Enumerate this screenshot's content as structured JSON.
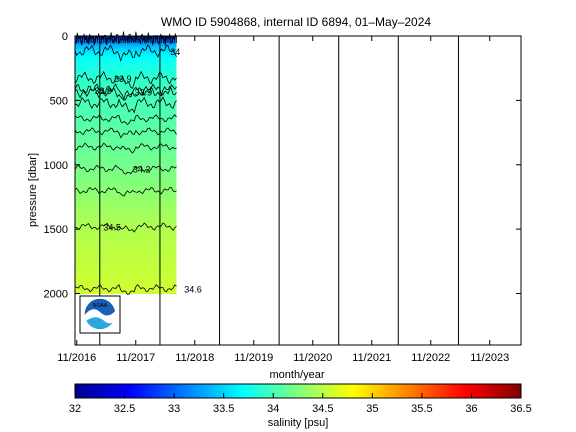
{
  "chart_data": {
    "type": "heatmap",
    "title": "WMO ID 5904868, internal ID 6894, 01–May–2024",
    "xlabel": "month/year",
    "ylabel": "pressure [dbar]",
    "x_ticks": [
      "11/2016",
      "11/2017",
      "11/2018",
      "11/2019",
      "11/2020",
      "11/2021",
      "11/2022",
      "11/2023"
    ],
    "x_tick_values": [
      2016.83,
      2017.83,
      2018.83,
      2019.83,
      2020.83,
      2021.83,
      2022.83,
      2023.83
    ],
    "xlim": [
      2016.8,
      2024.36
    ],
    "y_ticks": [
      "0",
      "500",
      "1000",
      "1500",
      "2000"
    ],
    "y_tick_values": [
      0,
      500,
      1000,
      1500,
      2000
    ],
    "ylim": [
      2400,
      0
    ],
    "data_extent": {
      "x": [
        2016.8,
        2018.52
      ],
      "pressure": [
        0,
        2000
      ]
    },
    "colorbar": {
      "label": "salinity [psu]",
      "ticks": [
        "32",
        "32.5",
        "33",
        "33.5",
        "34",
        "34.5",
        "35",
        "35.5",
        "36",
        "36.5"
      ],
      "tick_values": [
        32,
        32.5,
        33,
        33.5,
        34,
        34.5,
        35,
        35.5,
        36,
        36.5
      ],
      "range": [
        32,
        36.5
      ]
    },
    "salinity_profile": {
      "pressure": [
        0,
        40,
        80,
        130,
        200,
        300,
        400,
        500,
        650,
        800,
        1000,
        1200,
        1400,
        1600,
        1800,
        2000
      ],
      "salinity": [
        32.7,
        33.1,
        33.4,
        33.6,
        33.75,
        33.85,
        33.95,
        34.0,
        34.05,
        34.12,
        34.2,
        34.3,
        34.42,
        34.5,
        34.55,
        34.6
      ]
    },
    "contours": [
      {
        "label": "34",
        "pressure": 115,
        "label_year": 2018.5
      },
      {
        "label": "33.9",
        "pressure": 325,
        "label_year": 2017.61
      },
      {
        "label": "33.9",
        "pressure": 420,
        "label_year": 2017.28
      },
      {
        "label": "33.9",
        "pressure": 430,
        "label_year": 2017.96
      },
      {
        "label": "",
        "pressure": 520
      },
      {
        "label": "",
        "pressure": 640
      },
      {
        "label": "",
        "pressure": 740
      },
      {
        "label": "",
        "pressure": 860
      },
      {
        "label": "34.2",
        "pressure": 1030,
        "label_year": 2017.93
      },
      {
        "label": "",
        "pressure": 1200
      },
      {
        "label": "34.5",
        "pressure": 1480,
        "label_year": 2017.43
      },
      {
        "label": "34.6",
        "pressure": 1960,
        "label_year": 2018.8
      }
    ],
    "vertical_lines": [
      2017.22,
      2018.24,
      2019.25,
      2020.26,
      2021.27,
      2022.28,
      2023.3
    ]
  }
}
